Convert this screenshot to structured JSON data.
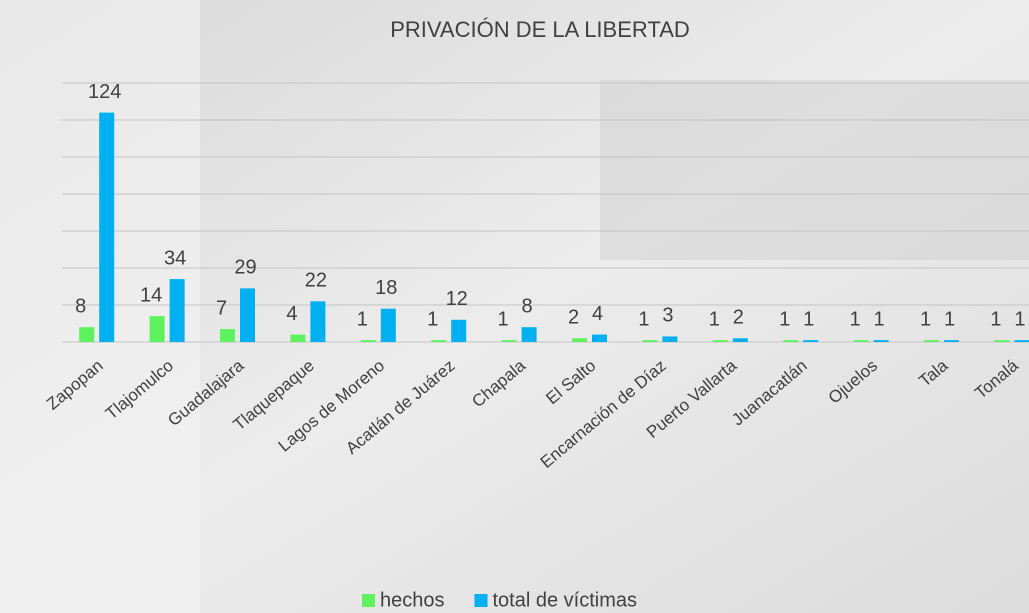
{
  "chart_data": {
    "type": "bar",
    "title": "PRIVACIÓN DE LA LIBERTAD",
    "categories": [
      "Zapopan",
      "Tlajomulco",
      "Guadalajara",
      "Tlaquepaque",
      "Lagos de Moreno",
      "Acatlán de Juárez",
      "Chapala",
      "El Salto",
      "Encarnación de Díaz",
      "Puerto Vallarta",
      "Juanacatlán",
      "Ojuelos",
      "Tala",
      "Tonalá"
    ],
    "series": [
      {
        "name": "hechos",
        "color": "#5ef25e",
        "values": [
          8,
          14,
          7,
          4,
          1,
          1,
          1,
          2,
          1,
          1,
          1,
          1,
          1,
          1
        ]
      },
      {
        "name": "total de víctimas",
        "color": "#00b0f0",
        "values": [
          124,
          34,
          29,
          22,
          18,
          12,
          8,
          4,
          3,
          2,
          1,
          1,
          1,
          1
        ]
      }
    ],
    "ylim": [
      0,
      140
    ],
    "yticks": [
      0,
      20,
      40,
      60,
      80,
      100,
      120,
      140
    ],
    "grid": true,
    "legend": "bottom"
  }
}
